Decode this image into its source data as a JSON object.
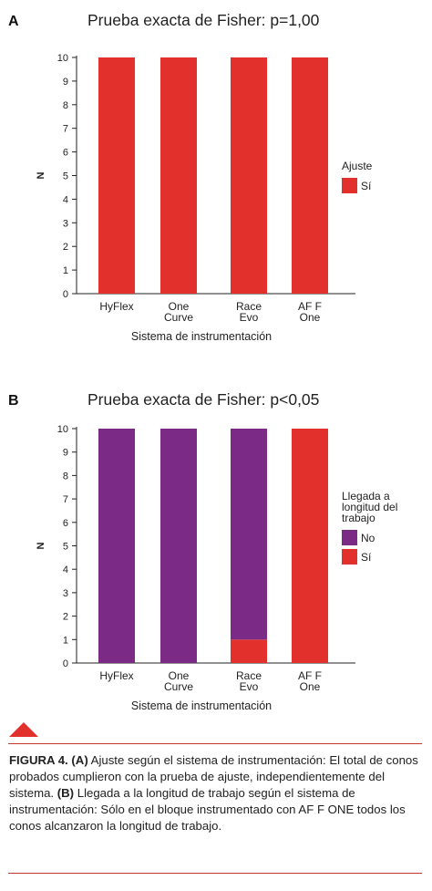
{
  "chart_data": [
    {
      "type": "bar",
      "panel_letter": "A",
      "title": "Prueba exacta de Fisher: p=1,00",
      "xlabel": "Sistema de instrumentación",
      "ylabel": "N",
      "ylim": [
        0,
        10
      ],
      "yticks": [
        0,
        1,
        2,
        3,
        4,
        5,
        6,
        7,
        8,
        9,
        10
      ],
      "categories": [
        [
          "HyFlex"
        ],
        [
          "One",
          "Curve"
        ],
        [
          "Race",
          "Evo"
        ],
        [
          "AF F",
          "One"
        ]
      ],
      "legend_title": [
        "Ajuste"
      ],
      "series": [
        {
          "name": "Sí",
          "color": "#e2312d",
          "values": [
            10,
            10,
            10,
            10
          ]
        }
      ]
    },
    {
      "type": "bar",
      "stacked": true,
      "panel_letter": "B",
      "title": "Prueba exacta de Fisher: p<0,05",
      "xlabel": "Sistema de instrumentación",
      "ylabel": "N",
      "ylim": [
        0,
        10
      ],
      "yticks": [
        0,
        1,
        2,
        3,
        4,
        5,
        6,
        7,
        8,
        9,
        10
      ],
      "categories": [
        [
          "HyFlex"
        ],
        [
          "One",
          "Curve"
        ],
        [
          "Race",
          "Evo"
        ],
        [
          "AF F",
          "One"
        ]
      ],
      "legend_title": [
        "Llegada a",
        "longitud del",
        "trabajo"
      ],
      "series": [
        {
          "name": "Sí",
          "color": "#e2312d",
          "values": [
            0,
            0,
            1,
            10
          ]
        },
        {
          "name": "No",
          "color": "#7b2a86",
          "values": [
            10,
            10,
            9,
            0
          ]
        }
      ]
    }
  ],
  "caption": {
    "label": "FIGURA 4.",
    "a_marker": "(A)",
    "a_text": " Ajuste según el sistema de instrumentación: El total de conos probados cumplieron con la prueba de ajuste, independientemente del sistema. ",
    "b_marker": "(B)",
    "b_text": " Llegada a la longitud de trabajo según el sistema de instrumentación: Sólo en el bloque instrumentado con AF F ONE todos los conos alcanzaron la longitud de trabajo."
  },
  "colors": {
    "accent": "#e2312d",
    "purple": "#7b2a86"
  }
}
